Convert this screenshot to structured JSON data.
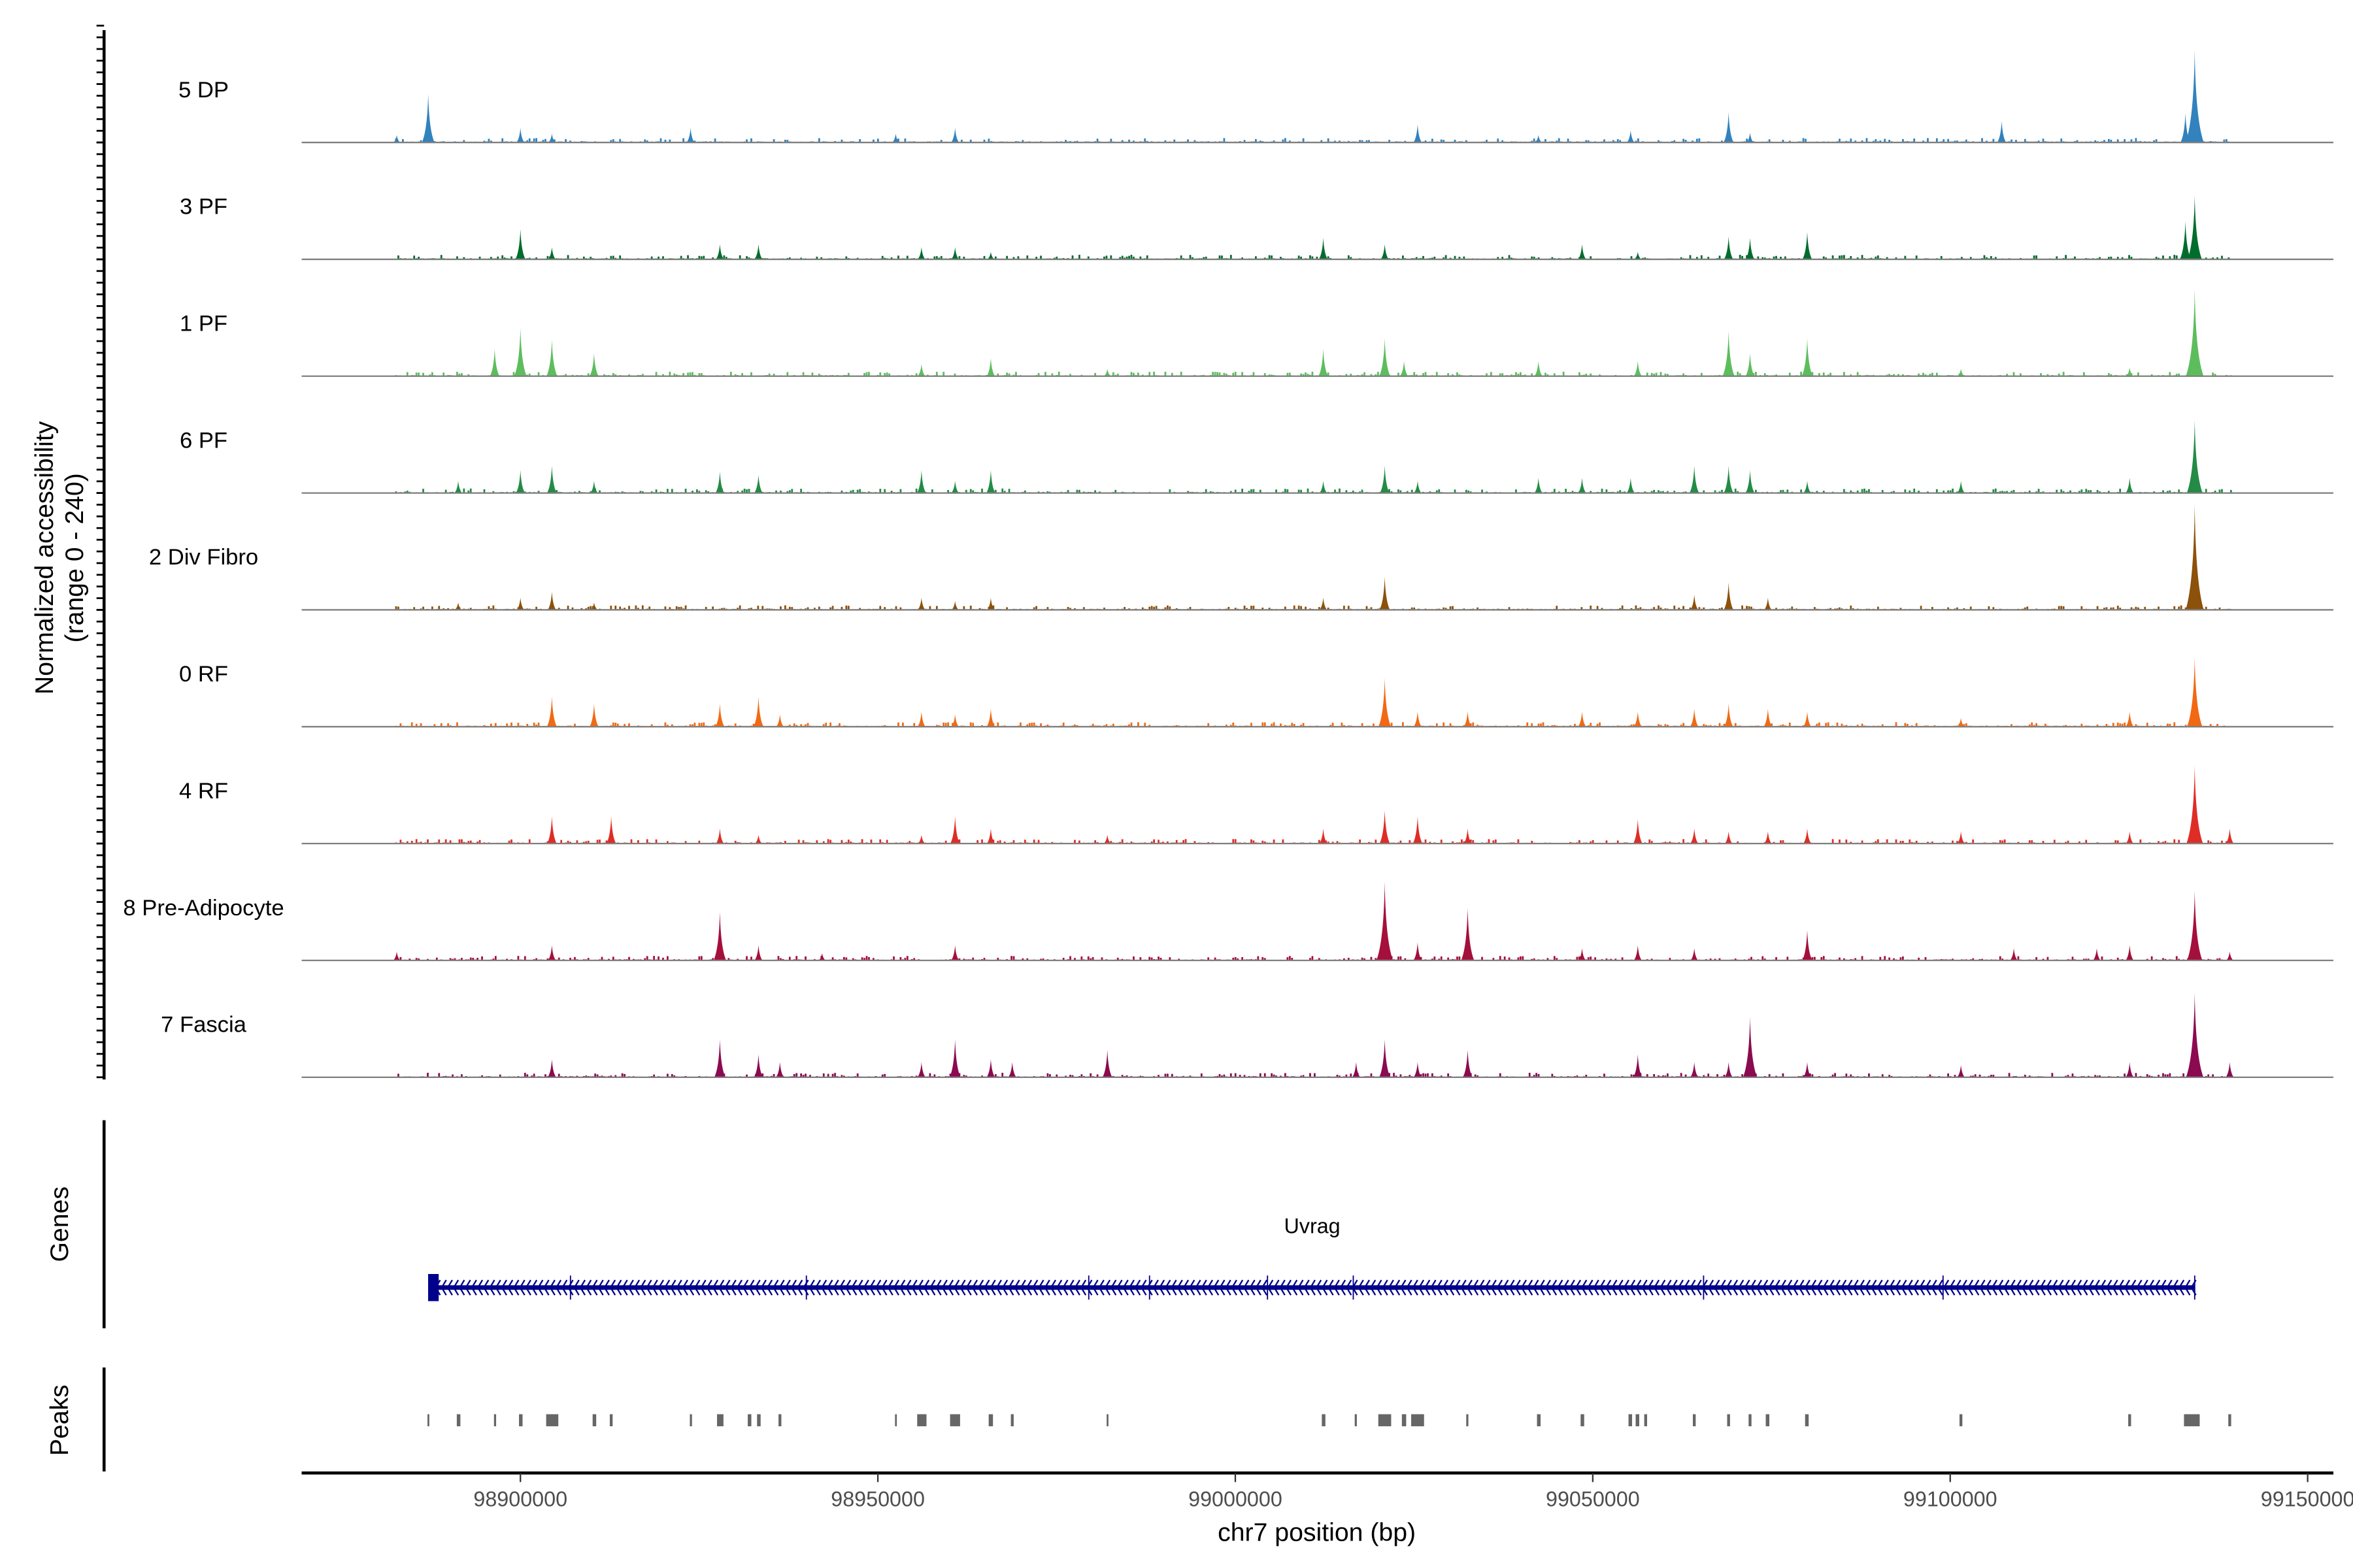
{
  "chart_data": {
    "type": "area",
    "ylabel": "Normalized accessibility",
    "ylabel_range": "(range 0 - 240)",
    "ylim": [
      0,
      240
    ],
    "xlabel": "chr7 position (bp)",
    "xlim_kb": [
      98869.4,
      99153.6
    ],
    "xticks": [
      "98900000",
      "98950000",
      "99000000",
      "99050000",
      "99100000",
      "99150000"
    ],
    "xtick_values_kb": [
      98900,
      98950,
      99000,
      99050,
      99100,
      99150
    ],
    "position_units": "kb",
    "tracks": [
      {
        "name": "5 DP",
        "color": "#3182bd",
        "peaks": [
          [
            98887.1,
            100
          ],
          [
            98882.7,
            15
          ],
          [
            98900.0,
            30
          ],
          [
            98904.4,
            18
          ],
          [
            98923.8,
            30
          ],
          [
            98952.5,
            18
          ],
          [
            98960.8,
            30
          ],
          [
            99025.5,
            37
          ],
          [
            99042.4,
            15
          ],
          [
            99055.3,
            25
          ],
          [
            99069.0,
            62
          ],
          [
            99072.0,
            20
          ],
          [
            99107.2,
            44
          ],
          [
            99134.2,
            190
          ],
          [
            99132.9,
            60
          ]
        ]
      },
      {
        "name": "3 PF",
        "color": "#006d2c",
        "peaks": [
          [
            98900.0,
            62
          ],
          [
            98904.4,
            25
          ],
          [
            98927.9,
            31
          ],
          [
            98933.3,
            31
          ],
          [
            98956.1,
            25
          ],
          [
            98960.8,
            25
          ],
          [
            98965.8,
            15
          ],
          [
            99012.3,
            44
          ],
          [
            99020.9,
            31
          ],
          [
            99048.5,
            31
          ],
          [
            99056.3,
            15
          ],
          [
            99069.0,
            47
          ],
          [
            99072.0,
            44
          ],
          [
            99080.0,
            56
          ],
          [
            99132.9,
            78
          ],
          [
            99134.2,
            130
          ]
        ]
      },
      {
        "name": "1 PF",
        "color": "#5dbd5d",
        "peaks": [
          [
            98896.4,
            56
          ],
          [
            98900.0,
            100
          ],
          [
            98904.4,
            75
          ],
          [
            98910.3,
            47
          ],
          [
            98956.1,
            25
          ],
          [
            98965.8,
            37
          ],
          [
            98982.1,
            15
          ],
          [
            99012.3,
            56
          ],
          [
            99020.9,
            78
          ],
          [
            99023.6,
            31
          ],
          [
            99042.4,
            31
          ],
          [
            99056.3,
            31
          ],
          [
            99069.0,
            93
          ],
          [
            99072.0,
            47
          ],
          [
            99080.0,
            78
          ],
          [
            99101.5,
            15
          ],
          [
            99125.1,
            18
          ],
          [
            99134.2,
            180
          ]
        ]
      },
      {
        "name": "6 PF",
        "color": "#238b45",
        "peaks": [
          [
            98891.3,
            25
          ],
          [
            98900.0,
            47
          ],
          [
            98904.4,
            56
          ],
          [
            98910.3,
            25
          ],
          [
            98927.9,
            44
          ],
          [
            98933.3,
            37
          ],
          [
            98956.1,
            47
          ],
          [
            98960.8,
            25
          ],
          [
            98965.8,
            47
          ],
          [
            99012.3,
            25
          ],
          [
            99020.9,
            56
          ],
          [
            99025.5,
            25
          ],
          [
            99042.4,
            31
          ],
          [
            99048.5,
            31
          ],
          [
            99055.3,
            31
          ],
          [
            99064.2,
            56
          ],
          [
            99069.0,
            56
          ],
          [
            99072.0,
            47
          ],
          [
            99080.0,
            25
          ],
          [
            99101.5,
            25
          ],
          [
            99125.1,
            31
          ],
          [
            99134.2,
            150
          ]
        ]
      },
      {
        "name": "2 Div Fibro",
        "color": "#8c510a",
        "peaks": [
          [
            98891.3,
            15
          ],
          [
            98900.0,
            25
          ],
          [
            98904.4,
            37
          ],
          [
            98910.3,
            15
          ],
          [
            98956.1,
            25
          ],
          [
            98960.8,
            18
          ],
          [
            98965.8,
            25
          ],
          [
            99012.3,
            25
          ],
          [
            99020.9,
            68
          ],
          [
            99064.2,
            31
          ],
          [
            99069.0,
            56
          ],
          [
            99074.5,
            25
          ],
          [
            99134.2,
            218
          ]
        ]
      },
      {
        "name": "0 RF",
        "color": "#f16913",
        "peaks": [
          [
            98904.4,
            62
          ],
          [
            98910.3,
            47
          ],
          [
            98927.9,
            47
          ],
          [
            98933.3,
            62
          ],
          [
            98936.3,
            25
          ],
          [
            98956.1,
            31
          ],
          [
            98960.8,
            25
          ],
          [
            98965.8,
            37
          ],
          [
            99020.9,
            100
          ],
          [
            99025.5,
            31
          ],
          [
            99032.5,
            31
          ],
          [
            99048.5,
            31
          ],
          [
            99056.3,
            31
          ],
          [
            99064.2,
            37
          ],
          [
            99069.0,
            47
          ],
          [
            99074.5,
            37
          ],
          [
            99080.0,
            31
          ],
          [
            99101.5,
            18
          ],
          [
            99125.1,
            31
          ],
          [
            99134.2,
            143
          ]
        ]
      },
      {
        "name": "4 RF",
        "color": "#de2d26",
        "peaks": [
          [
            98904.4,
            56
          ],
          [
            98912.7,
            56
          ],
          [
            98927.9,
            31
          ],
          [
            98933.3,
            18
          ],
          [
            98956.1,
            18
          ],
          [
            98960.8,
            56
          ],
          [
            98965.8,
            31
          ],
          [
            98982.1,
            18
          ],
          [
            99012.3,
            31
          ],
          [
            99020.9,
            68
          ],
          [
            99025.5,
            56
          ],
          [
            99032.5,
            31
          ],
          [
            99056.3,
            50
          ],
          [
            99064.2,
            31
          ],
          [
            99069.0,
            25
          ],
          [
            99074.5,
            25
          ],
          [
            99080.0,
            31
          ],
          [
            99101.5,
            25
          ],
          [
            99125.1,
            25
          ],
          [
            99134.2,
            161
          ],
          [
            99139.1,
            31
          ]
        ]
      },
      {
        "name": "8 Pre-Adipocyte",
        "color": "#a50f3c",
        "peaks": [
          [
            98882.7,
            18
          ],
          [
            98904.4,
            31
          ],
          [
            98927.9,
            100
          ],
          [
            98933.3,
            31
          ],
          [
            98942.2,
            15
          ],
          [
            98960.8,
            31
          ],
          [
            99020.9,
            162
          ],
          [
            99025.5,
            37
          ],
          [
            99032.5,
            108
          ],
          [
            99048.5,
            25
          ],
          [
            99056.3,
            31
          ],
          [
            99064.2,
            25
          ],
          [
            99080.0,
            62
          ],
          [
            99108.9,
            25
          ],
          [
            99120.5,
            25
          ],
          [
            99125.1,
            31
          ],
          [
            99134.2,
            143
          ],
          [
            99139.1,
            18
          ]
        ]
      },
      {
        "name": "7 Fascia",
        "color": "#8b0a50",
        "peaks": [
          [
            98904.4,
            37
          ],
          [
            98927.9,
            78
          ],
          [
            98933.3,
            47
          ],
          [
            98936.3,
            31
          ],
          [
            98956.1,
            31
          ],
          [
            98960.8,
            78
          ],
          [
            98965.8,
            37
          ],
          [
            98968.8,
            31
          ],
          [
            98982.1,
            56
          ],
          [
            99016.9,
            31
          ],
          [
            99020.9,
            78
          ],
          [
            99025.5,
            31
          ],
          [
            99032.5,
            56
          ],
          [
            99056.3,
            47
          ],
          [
            99064.2,
            31
          ],
          [
            99069.0,
            31
          ],
          [
            99072.0,
            124
          ],
          [
            99080.0,
            31
          ],
          [
            99101.5,
            25
          ],
          [
            99125.1,
            31
          ],
          [
            99134.2,
            174
          ],
          [
            99139.1,
            31
          ]
        ]
      }
    ],
    "genes": {
      "label": "Genes",
      "items": [
        {
          "name": "Uvrag",
          "start_kb": 98887.3,
          "end_kb": 99134.2,
          "strand": "-",
          "color": "#00008b",
          "exons_kb": [
            98887.3,
            98907.0,
            98940.0,
            98979.5,
            98988.0,
            99004.5,
            99016.5,
            99065.5,
            99099.0,
            99134.2
          ]
        }
      ]
    },
    "peaks_track": {
      "label": "Peaks",
      "color": "#666666",
      "regions_kb": [
        [
          98887.0,
          98887.2
        ],
        [
          98891.1,
          98891.6
        ],
        [
          98896.3,
          98896.6
        ],
        [
          98899.8,
          98900.3
        ],
        [
          98903.6,
          98905.3
        ],
        [
          98910.1,
          98910.6
        ],
        [
          98912.5,
          98912.9
        ],
        [
          98923.7,
          98924.0
        ],
        [
          98927.5,
          98928.4
        ],
        [
          98931.8,
          98932.3
        ],
        [
          98933.1,
          98933.6
        ],
        [
          98936.1,
          98936.5
        ],
        [
          98952.4,
          98952.6
        ],
        [
          98955.5,
          98956.8
        ],
        [
          98960.1,
          98961.5
        ],
        [
          98965.5,
          98966.1
        ],
        [
          98968.6,
          98969.0
        ],
        [
          98982.0,
          98982.2
        ],
        [
          99012.1,
          99012.6
        ],
        [
          99016.7,
          99017.0
        ],
        [
          99020.0,
          99021.8
        ],
        [
          99023.3,
          99023.9
        ],
        [
          99024.6,
          99026.4
        ],
        [
          99032.3,
          99032.6
        ],
        [
          99042.2,
          99042.7
        ],
        [
          99048.3,
          99048.8
        ],
        [
          99055.0,
          99055.5
        ],
        [
          99056.0,
          99056.5
        ],
        [
          99057.2,
          99057.6
        ],
        [
          99064.0,
          99064.4
        ],
        [
          99068.8,
          99069.2
        ],
        [
          99071.8,
          99072.2
        ],
        [
          99074.2,
          99074.7
        ],
        [
          99079.7,
          99080.2
        ],
        [
          99101.3,
          99101.7
        ],
        [
          99124.9,
          99125.3
        ],
        [
          99132.7,
          99134.9
        ],
        [
          99138.9,
          99139.3
        ]
      ]
    }
  }
}
